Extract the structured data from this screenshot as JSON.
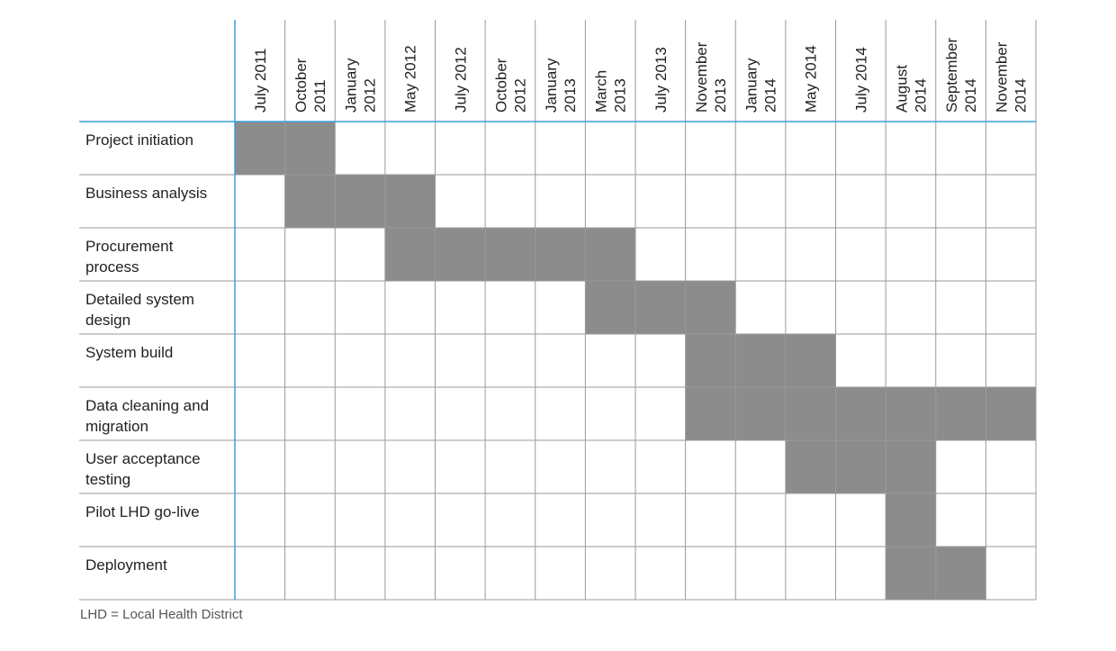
{
  "chart_data": {
    "type": "table",
    "columns": [
      [
        "July 2011"
      ],
      [
        "October",
        "2011"
      ],
      [
        "January",
        "2012"
      ],
      [
        "May 2012"
      ],
      [
        "July 2012"
      ],
      [
        "October",
        "2012"
      ],
      [
        "January",
        "2013"
      ],
      [
        "March",
        "2013"
      ],
      [
        "July 2013"
      ],
      [
        "November",
        "2013"
      ],
      [
        "January",
        "2014"
      ],
      [
        "May 2014"
      ],
      [
        "July 2014"
      ],
      [
        "August",
        "2014"
      ],
      [
        "September",
        "2014"
      ],
      [
        "November",
        "2014"
      ]
    ],
    "rows": [
      {
        "label": [
          "Project initiation"
        ],
        "start": 0,
        "end": 1
      },
      {
        "label": [
          "Business analysis"
        ],
        "start": 1,
        "end": 3
      },
      {
        "label": [
          "Procurement",
          "process"
        ],
        "start": 3,
        "end": 7
      },
      {
        "label": [
          "Detailed system",
          "design"
        ],
        "start": 7,
        "end": 9
      },
      {
        "label": [
          "System build"
        ],
        "start": 9,
        "end": 11
      },
      {
        "label": [
          "Data cleaning and",
          "migration"
        ],
        "start": 9,
        "end": 15
      },
      {
        "label": [
          "User acceptance",
          "testing"
        ],
        "start": 11,
        "end": 13
      },
      {
        "label": [
          "Pilot LHD go-live"
        ],
        "start": 13,
        "end": 13
      },
      {
        "label": [
          "Deployment"
        ],
        "start": 13,
        "end": 14
      }
    ],
    "colors": {
      "bar": "#8c8c8c",
      "grid": "#9a9a9a",
      "axis": "#3aa0e0"
    }
  },
  "footnote": "LHD = Local Health District"
}
